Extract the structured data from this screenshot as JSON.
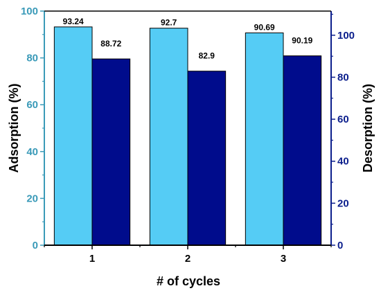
{
  "chart_data": {
    "type": "bar",
    "categories": [
      "1",
      "2",
      "3"
    ],
    "xlabel": "# of cycles",
    "ylabel_left": "Adsorption (%)",
    "ylabel_right": "Desorption (%)",
    "ylim_left": [
      0,
      100
    ],
    "ylim_right": [
      0,
      111.5
    ],
    "yticks_left": [
      0,
      20,
      40,
      60,
      80,
      100
    ],
    "yticks_right": [
      0,
      20,
      40,
      60,
      80,
      100
    ],
    "series": [
      {
        "name": "Adsorption",
        "axis": "left",
        "color": "#55ccf5",
        "values": [
          93.24,
          92.7,
          90.69
        ],
        "labels": [
          "93.24",
          "92.7",
          "90.69"
        ]
      },
      {
        "name": "Desorption",
        "axis": "right",
        "color": "#000c8c",
        "values": [
          88.72,
          82.9,
          90.19
        ],
        "labels": [
          "88.72",
          "82.9",
          "90.19"
        ]
      }
    ],
    "left_axis_color": "#3a9ab8",
    "right_axis_color": "#0b1e8c",
    "grid": false,
    "legend": "none"
  }
}
